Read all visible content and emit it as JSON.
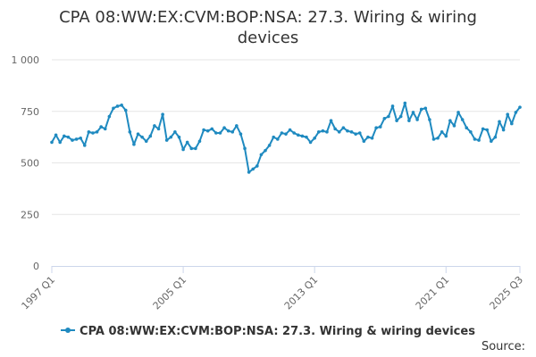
{
  "chart_data": {
    "type": "line",
    "title": "CPA 08:WW:EX:CVM:BOP:NSA: 27.3. Wiring & wiring devices",
    "xlabel": "",
    "ylabel": "",
    "ylim": [
      0,
      1000
    ],
    "y_ticks": [
      "0",
      "250",
      "500",
      "750",
      "1 000"
    ],
    "y_tick_values": [
      0,
      250,
      500,
      750,
      1000
    ],
    "x_tick_labels": [
      "1997 Q1",
      "2005 Q1",
      "2013 Q1",
      "2021 Q1",
      "2025 Q3"
    ],
    "x_tick_index": [
      0,
      32,
      64,
      96,
      114
    ],
    "grid": true,
    "legend_position": "bottom",
    "series": [
      {
        "name": "CPA 08:WW:EX:CVM:BOP:NSA: 27.3. Wiring & wiring devices",
        "color": "#1f8ac0",
        "values": [
          600,
          635,
          600,
          630,
          625,
          610,
          615,
          620,
          585,
          650,
          645,
          650,
          675,
          665,
          725,
          765,
          775,
          780,
          755,
          650,
          590,
          640,
          625,
          605,
          630,
          680,
          665,
          735,
          610,
          625,
          650,
          625,
          565,
          600,
          570,
          570,
          605,
          660,
          655,
          665,
          645,
          645,
          670,
          655,
          650,
          680,
          640,
          570,
          455,
          470,
          485,
          540,
          560,
          585,
          625,
          615,
          645,
          640,
          660,
          645,
          635,
          630,
          625,
          600,
          620,
          650,
          655,
          650,
          705,
          665,
          650,
          670,
          655,
          650,
          640,
          645,
          605,
          625,
          620,
          670,
          675,
          715,
          725,
          775,
          705,
          725,
          790,
          705,
          745,
          710,
          760,
          765,
          710,
          615,
          620,
          650,
          630,
          705,
          680,
          745,
          710,
          670,
          650,
          615,
          610,
          665,
          660,
          605,
          625,
          700,
          660,
          735,
          690,
          745,
          770
        ]
      }
    ]
  },
  "legend": {
    "label": "CPA 08:WW:EX:CVM:BOP:NSA: 27.3. Wiring & wiring devices"
  },
  "source_label": "Source:"
}
